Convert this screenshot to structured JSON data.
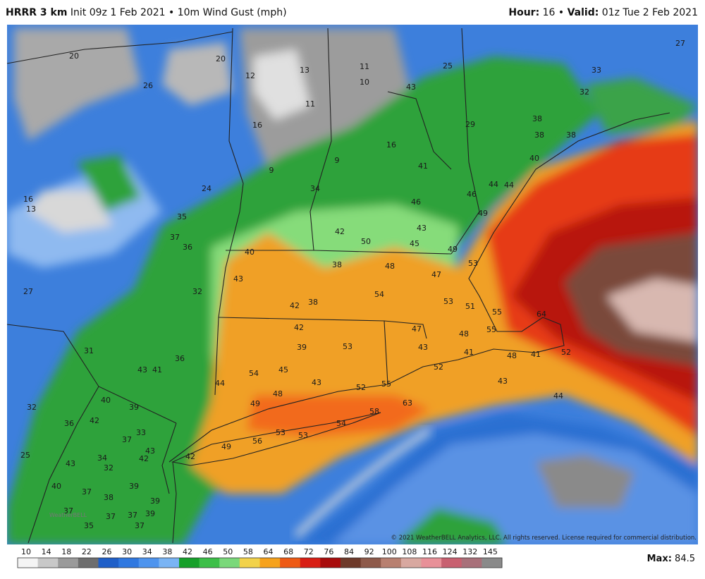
{
  "header": {
    "model": "HRRR 3 km",
    "init": "Init 09z 1 Feb 2021 • 10m Wind Gust (mph)",
    "hour_label": "Hour:",
    "hour": "16 •",
    "valid_label": "Valid:",
    "valid": "01z Tue 2 Feb 2021"
  },
  "map_labels": [
    20,
    26,
    20,
    12,
    13,
    11,
    10,
    11,
    43,
    25,
    27,
    33,
    32,
    38,
    38,
    38,
    29,
    16,
    16,
    9,
    9,
    41,
    40,
    44,
    44,
    46,
    49,
    24,
    34,
    46,
    16,
    13,
    35,
    37,
    36,
    42,
    43,
    50,
    45,
    40,
    49,
    38,
    48,
    53,
    43,
    47,
    27,
    32,
    54,
    53,
    42,
    38,
    51,
    55,
    64,
    42,
    47,
    48,
    55,
    53,
    39,
    43,
    31,
    41,
    48,
    41,
    52,
    36,
    43,
    41,
    54,
    45,
    52,
    44,
    43,
    52,
    55,
    43,
    44,
    40,
    39,
    48,
    49,
    58,
    63,
    32,
    42,
    36,
    54,
    33,
    53,
    53,
    37,
    56,
    49,
    43,
    42,
    42,
    25,
    43,
    34,
    32,
    39,
    40,
    37,
    38,
    39,
    37,
    37,
    37,
    39,
    35,
    37
  ],
  "copyright": "© 2021 WeatherBELL Analytics, LLC. All rights reserved. License required for commercial distribution.",
  "watermark": "WeatherBELL",
  "colorbar": {
    "labels": [
      10,
      14,
      18,
      22,
      26,
      30,
      34,
      38,
      42,
      46,
      50,
      58,
      64,
      68,
      72,
      76,
      84,
      92,
      100,
      108,
      116,
      124,
      132,
      145
    ],
    "colors": [
      "#f4f4f4",
      "#c8c8c8",
      "#9a9a9a",
      "#6e6e6e",
      "#1f5fc8",
      "#2f78e0",
      "#4e94ee",
      "#7ab4f4",
      "#16a02a",
      "#3cbf48",
      "#7ad87a",
      "#f2d24a",
      "#f6a21c",
      "#ee5a14",
      "#d81e14",
      "#a80c0c",
      "#6e3a2a",
      "#8e5a4a",
      "#b88070",
      "#d8a8a0",
      "#e89098",
      "#c86070",
      "#a8707a",
      "#8a8a8a"
    ]
  },
  "max_label": "Max:",
  "max_value": 84.5
}
